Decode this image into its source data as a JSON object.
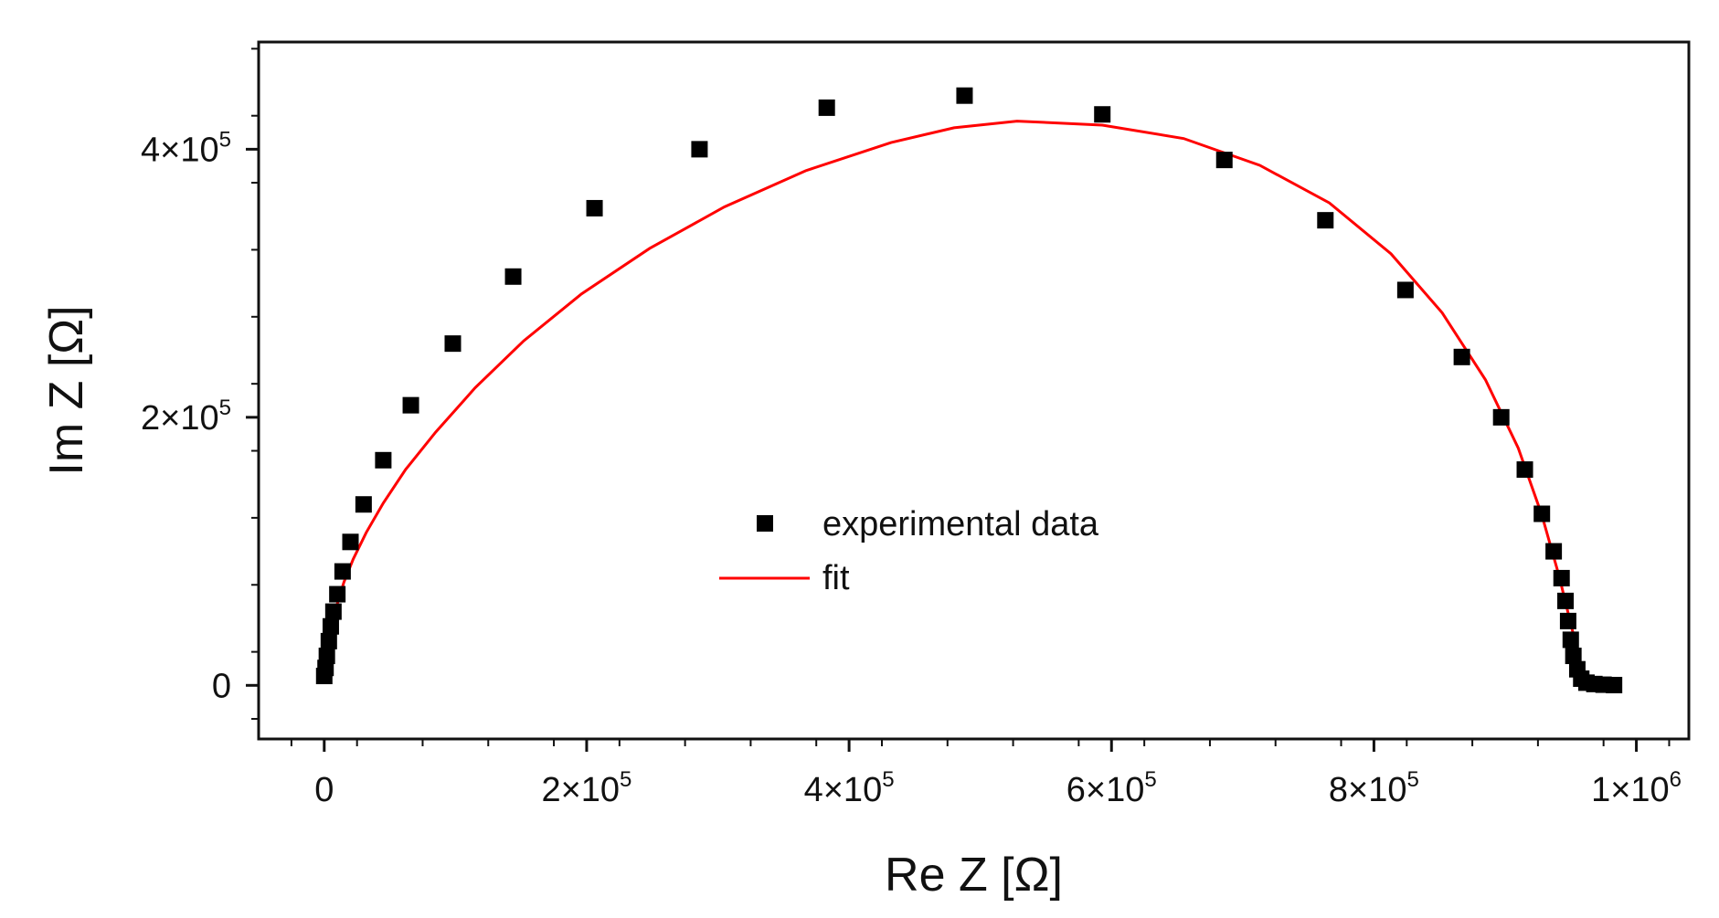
{
  "chart_data": {
    "type": "scatter",
    "title": "",
    "xlabel": "Re Z [Ω]",
    "ylabel": "Im Z [Ω]",
    "xlim": [
      -50000,
      1040000
    ],
    "ylim": [
      -40000,
      480000
    ],
    "x_ticks": [
      {
        "value": 0,
        "base": "0",
        "exp": ""
      },
      {
        "value": 200000,
        "base": "2×10",
        "exp": "5"
      },
      {
        "value": 400000,
        "base": "4×10",
        "exp": "5"
      },
      {
        "value": 600000,
        "base": "6×10",
        "exp": "5"
      },
      {
        "value": 800000,
        "base": "8×10",
        "exp": "5"
      },
      {
        "value": 1000000,
        "base": "1×10",
        "exp": "6"
      }
    ],
    "y_ticks": [
      {
        "value": 0,
        "base": "0",
        "exp": ""
      },
      {
        "value": 200000,
        "base": "2×10",
        "exp": "5"
      },
      {
        "value": 400000,
        "base": "4×10",
        "exp": "5"
      }
    ],
    "grid": false,
    "legend_position": "center",
    "series": [
      {
        "name": "experimental data",
        "marker": "square",
        "color": "#000000",
        "x": [
          0,
          1000,
          2000,
          3500,
          5000,
          7000,
          10000,
          14000,
          20000,
          30000,
          45000,
          66000,
          98000,
          144000,
          206000,
          286000,
          383000,
          488000,
          593000,
          686000,
          763000,
          824000,
          867000,
          897000,
          915000,
          928000,
          937000,
          943000,
          946000,
          948000,
          950000,
          952000,
          955000,
          958000,
          962000,
          968000,
          975000,
          983000
        ],
        "y": [
          7000,
          13000,
          22000,
          33000,
          44000,
          55000,
          68000,
          85000,
          107000,
          135000,
          168000,
          209000,
          255000,
          305000,
          356000,
          400000,
          431000,
          440000,
          426000,
          392000,
          347000,
          295000,
          245000,
          200000,
          161000,
          128000,
          100000,
          80000,
          63000,
          48000,
          34000,
          22000,
          12000,
          5000,
          2000,
          1000,
          500,
          200
        ]
      },
      {
        "name": "fit",
        "marker": "line",
        "color": "#ff0000",
        "x": [
          0,
          1000,
          3000,
          6000,
          10000,
          15000,
          22000,
          32000,
          45000,
          62000,
          85000,
          115000,
          152000,
          196000,
          248000,
          305000,
          367000,
          432000,
          480000,
          528000,
          593000,
          655000,
          713000,
          766000,
          813000,
          852000,
          885000,
          910000,
          928000,
          941000,
          950000,
          956000,
          959000,
          960000
        ],
        "y": [
          5000,
          16000,
          30000,
          45000,
          61000,
          77000,
          94000,
          114000,
          136000,
          161000,
          189000,
          222000,
          257000,
          292000,
          326000,
          357000,
          384000,
          405000,
          416000,
          421000,
          418000,
          408000,
          388000,
          360000,
          322000,
          278000,
          228000,
          177000,
          127000,
          82000,
          46000,
          22000,
          8000,
          0
        ]
      }
    ]
  }
}
